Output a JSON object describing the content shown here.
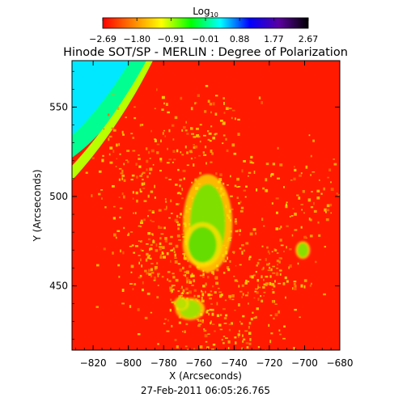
{
  "chart_data": {
    "type": "heatmap",
    "title": "Hinode SOT/SP - MERLIN : Degree of Polarization",
    "xlabel": "X (Arcseconds)",
    "ylabel": "Y (Arcseconds)",
    "footer": "27-Feb-2011 06:05:26.765",
    "colorbar": {
      "label_base": "Log",
      "label_sub": "10",
      "tick_labels": [
        "−2.69",
        "−1.80",
        "−0.91",
        "−0.01",
        "0.88",
        "1.77",
        "2.67"
      ],
      "ticks": [
        -2.69,
        -1.8,
        -0.91,
        -0.01,
        0.88,
        1.77,
        2.67
      ],
      "range": [
        -2.69,
        2.67
      ],
      "colors": [
        "#ff0000",
        "#ff7f00",
        "#ffff00",
        "#00ff00",
        "#00ffff",
        "#0000ff",
        "#5a00a0",
        "#000000"
      ]
    },
    "xlim": [
      -832,
      -680
    ],
    "ylim": [
      414,
      576
    ],
    "x_ticks": [
      -820,
      -800,
      -780,
      -760,
      -740,
      -720,
      -700,
      -680
    ],
    "x_tick_labels": [
      "−820",
      "−800",
      "−780",
      "−760",
      "−740",
      "−720",
      "−700",
      "−680"
    ],
    "y_ticks": [
      450,
      500,
      550
    ],
    "y_tick_labels": [
      "450",
      "500",
      "550"
    ],
    "background_color": "#ff1a00",
    "limb": {
      "note_colors": [
        "#00e8ff",
        "#00ff90",
        "#b8ff00"
      ]
    },
    "regions": [
      {
        "name": "core",
        "cx": -755,
        "cy": 485,
        "rx": 10,
        "ry": 22,
        "color": "#7fe000"
      },
      {
        "name": "core2",
        "cx": -758,
        "cy": 473,
        "rx": 8,
        "ry": 10,
        "color": "#66dd00"
      },
      {
        "name": "spot-west",
        "cx": -701,
        "cy": 470,
        "rx": 3,
        "ry": 4,
        "color": "#88e000"
      },
      {
        "name": "spot-south",
        "cx": -765,
        "cy": 437,
        "rx": 6,
        "ry": 5,
        "color": "#a0e000"
      },
      {
        "name": "spot-south2",
        "cx": -770,
        "cy": 440,
        "rx": 3,
        "ry": 3,
        "color": "#b8e000"
      }
    ]
  }
}
